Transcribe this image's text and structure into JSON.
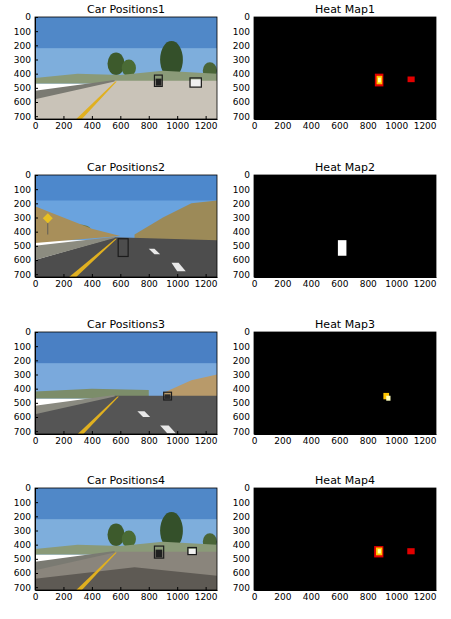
{
  "chart_data": [
    {
      "type": "image",
      "title": "Car Positions1",
      "xlim": [
        0,
        1280
      ],
      "ylim": [
        720,
        0
      ],
      "xticks": [
        0,
        200,
        400,
        600,
        800,
        1000,
        1200
      ],
      "yticks": [
        0,
        100,
        200,
        300,
        400,
        500,
        600,
        700
      ],
      "boxes": [
        [
          840,
          410,
          895,
          490
        ],
        [
          1090,
          430,
          1170,
          495
        ]
      ],
      "color": "#1c1c1c"
    },
    {
      "type": "heatmap",
      "title": "Heat Map1",
      "xlim": [
        0,
        1280
      ],
      "ylim": [
        720,
        0
      ],
      "xticks": [
        0,
        200,
        400,
        600,
        800,
        1000,
        1200
      ],
      "yticks": [
        0,
        100,
        200,
        300,
        400,
        500,
        600,
        700
      ],
      "cells": [
        [
          850,
          400,
          910,
          490,
          2
        ],
        [
          862,
          415,
          902,
          475,
          4
        ],
        [
          872,
          428,
          892,
          462,
          5.5
        ],
        [
          1080,
          420,
          1130,
          460,
          2
        ]
      ],
      "color_range": [
        0,
        6
      ]
    },
    {
      "type": "image",
      "title": "Car Positions2",
      "xlim": [
        0,
        1280
      ],
      "ylim": [
        720,
        0
      ],
      "xticks": [
        0,
        200,
        400,
        600,
        800,
        1000,
        1200
      ],
      "yticks": [
        0,
        100,
        200,
        300,
        400,
        500,
        600,
        700
      ],
      "boxes": [
        [
          585,
          450,
          655,
          575
        ]
      ],
      "color": "#1c1c1c"
    },
    {
      "type": "heatmap",
      "title": "Heat Map2",
      "xlim": [
        0,
        1280
      ],
      "ylim": [
        720,
        0
      ],
      "xticks": [
        0,
        200,
        400,
        600,
        800,
        1000,
        1200
      ],
      "yticks": [
        0,
        100,
        200,
        300,
        400,
        500,
        600,
        700
      ],
      "cells": [
        [
          590,
          460,
          650,
          570,
          3
        ]
      ],
      "color_range": [
        0,
        3
      ]
    },
    {
      "type": "image",
      "title": "Car Positions3",
      "xlim": [
        0,
        1280
      ],
      "ylim": [
        720,
        0
      ],
      "xticks": [
        0,
        200,
        400,
        600,
        800,
        1000,
        1200
      ],
      "yticks": [
        0,
        100,
        200,
        300,
        400,
        500,
        600,
        700
      ],
      "boxes": [
        [
          905,
          425,
          960,
          480
        ]
      ],
      "color": "#1c1c1c"
    },
    {
      "type": "heatmap",
      "title": "Heat Map3",
      "xlim": [
        0,
        1280
      ],
      "ylim": [
        720,
        0
      ],
      "xticks": [
        0,
        200,
        400,
        600,
        800,
        1000,
        1200
      ],
      "yticks": [
        0,
        100,
        200,
        300,
        400,
        500,
        600,
        700
      ],
      "cells": [
        [
          910,
          430,
          950,
          475,
          2
        ],
        [
          930,
          450,
          960,
          485,
          2.8
        ]
      ],
      "color_range": [
        0,
        3
      ]
    },
    {
      "type": "image",
      "title": "Car Positions4",
      "xlim": [
        0,
        1280
      ],
      "ylim": [
        720,
        0
      ],
      "xticks": [
        0,
        200,
        400,
        600,
        800,
        1000,
        1200
      ],
      "yticks": [
        0,
        100,
        200,
        300,
        400,
        500,
        600,
        700
      ],
      "boxes": [
        [
          840,
          410,
          905,
          495
        ],
        [
          1075,
          420,
          1135,
          470
        ]
      ],
      "color": "#1c1c1c"
    },
    {
      "type": "heatmap",
      "title": "Heat Map4",
      "xlim": [
        0,
        1280
      ],
      "ylim": [
        720,
        0
      ],
      "xticks": [
        0,
        200,
        400,
        600,
        800,
        1000,
        1200
      ],
      "yticks": [
        0,
        100,
        200,
        300,
        400,
        500,
        600,
        700
      ],
      "cells": [
        [
          845,
          410,
          910,
          490,
          2
        ],
        [
          858,
          420,
          902,
          475,
          4
        ],
        [
          870,
          432,
          892,
          462,
          5.5
        ],
        [
          1078,
          425,
          1130,
          468,
          2
        ]
      ],
      "color_range": [
        0,
        6
      ]
    }
  ]
}
